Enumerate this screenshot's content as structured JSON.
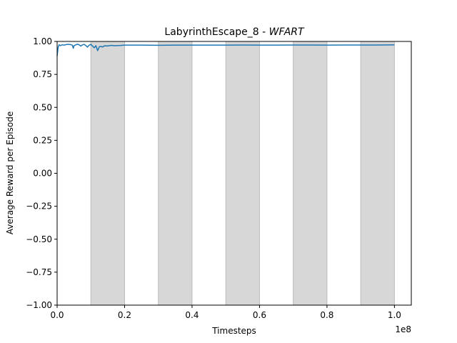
{
  "chart_data": {
    "type": "line",
    "title": "LabyrinthEscape_8 - ",
    "title_italic": "WFART",
    "xlabel": "Timesteps",
    "ylabel": "Average Reward per Episode",
    "x_offset_label": "1e8",
    "xlim": [
      0,
      1.05
    ],
    "ylim": [
      -1.0,
      1.0
    ],
    "xticks": [
      0.0,
      0.2,
      0.4,
      0.6,
      0.8,
      1.0
    ],
    "xtick_labels": [
      "0.0",
      "0.2",
      "0.4",
      "0.6",
      "0.8",
      "1.0"
    ],
    "yticks": [
      -1.0,
      -0.75,
      -0.5,
      -0.25,
      0.0,
      0.25,
      0.5,
      0.75,
      1.0
    ],
    "ytick_labels": [
      "−1.00",
      "−0.75",
      "−0.50",
      "−0.25",
      "0.00",
      "0.25",
      "0.50",
      "0.75",
      "1.00"
    ],
    "grid": false,
    "shaded_regions": [
      [
        0.1,
        0.2
      ],
      [
        0.3,
        0.4
      ],
      [
        0.5,
        0.6
      ],
      [
        0.7,
        0.8
      ],
      [
        0.9,
        1.0
      ]
    ],
    "colors": {
      "line": "#1f77b4",
      "shade": "#d7d7d7",
      "shade_edge": "#bcbcbc"
    },
    "series": [
      {
        "x": [
          0.0,
          0.003,
          0.006,
          0.01,
          0.015,
          0.02,
          0.025,
          0.03,
          0.035,
          0.04,
          0.045,
          0.048,
          0.05,
          0.055,
          0.06,
          0.065,
          0.07,
          0.075,
          0.08,
          0.085,
          0.09,
          0.095,
          0.1,
          0.105,
          0.11,
          0.115,
          0.12,
          0.125,
          0.13,
          0.135,
          0.14,
          0.15,
          0.16,
          0.17,
          0.18,
          0.19,
          0.2,
          0.25,
          0.3,
          0.35,
          0.4,
          0.45,
          0.5,
          0.55,
          0.6,
          0.65,
          0.7,
          0.75,
          0.8,
          0.85,
          0.9,
          0.95,
          1.0
        ],
        "values": [
          0.89,
          0.955,
          0.975,
          0.968,
          0.975,
          0.972,
          0.975,
          0.978,
          0.977,
          0.976,
          0.972,
          0.948,
          0.968,
          0.974,
          0.979,
          0.975,
          0.965,
          0.974,
          0.978,
          0.969,
          0.957,
          0.972,
          0.978,
          0.965,
          0.952,
          0.968,
          0.93,
          0.96,
          0.962,
          0.958,
          0.967,
          0.966,
          0.97,
          0.968,
          0.969,
          0.97,
          0.972,
          0.972,
          0.971,
          0.972,
          0.972,
          0.972,
          0.972,
          0.973,
          0.972,
          0.972,
          0.973,
          0.973,
          0.972,
          0.973,
          0.973,
          0.973,
          0.974
        ]
      }
    ]
  }
}
